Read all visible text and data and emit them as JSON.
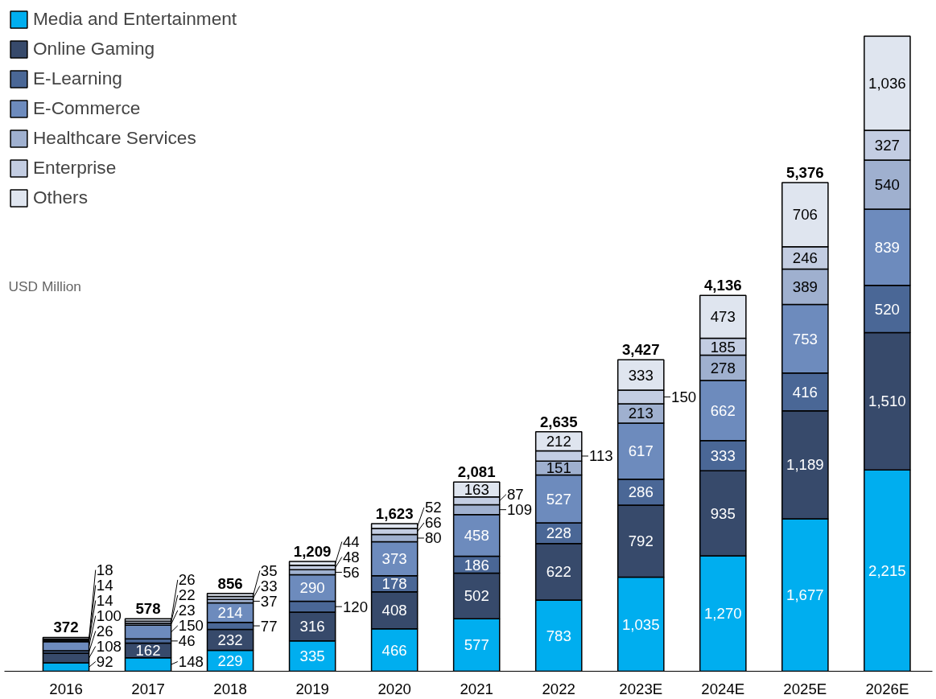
{
  "chart_data": {
    "type": "bar",
    "stacked": true,
    "ylabel": "USD Million",
    "categories": [
      "2016",
      "2017",
      "2018",
      "2019",
      "2020",
      "2021",
      "2022",
      "2023E",
      "2024E",
      "2025E",
      "2026E"
    ],
    "series": [
      {
        "name": "Media and Entertainment",
        "color": "#00aeef",
        "values": [
          92,
          148,
          229,
          335,
          466,
          577,
          783,
          1035,
          1270,
          1677,
          2215
        ],
        "value_labels": [
          "92",
          "148",
          "229",
          "335",
          "466",
          "577",
          "783",
          "1,035",
          "1,270",
          "1,677",
          "2,215"
        ]
      },
      {
        "name": "Online Gaming",
        "color": "#374a6b",
        "values": [
          108,
          162,
          232,
          316,
          408,
          502,
          622,
          792,
          935,
          1189,
          1510
        ],
        "value_labels": [
          "108",
          "162",
          "232",
          "316",
          "408",
          "502",
          "622",
          "792",
          "935",
          "1,189",
          "1,510"
        ]
      },
      {
        "name": "E-Learning",
        "color": "#4a6796",
        "values": [
          26,
          46,
          77,
          120,
          178,
          186,
          228,
          286,
          333,
          416,
          520
        ],
        "value_labels": [
          "26",
          "46",
          "77",
          "120",
          "178",
          "186",
          "228",
          "286",
          "333",
          "416",
          "520"
        ]
      },
      {
        "name": "E-Commerce",
        "color": "#6d8bbd",
        "values": [
          100,
          150,
          214,
          290,
          373,
          458,
          527,
          617,
          662,
          753,
          839
        ],
        "value_labels": [
          "100",
          "150",
          "214",
          "290",
          "373",
          "458",
          "527",
          "617",
          "662",
          "753",
          "839"
        ]
      },
      {
        "name": "Healthcare Services",
        "color": "#9fb0cf",
        "values": [
          14,
          23,
          37,
          56,
          80,
          109,
          151,
          213,
          278,
          389,
          540
        ],
        "value_labels": [
          "14",
          "23",
          "37",
          "56",
          "80",
          "109",
          "151",
          "213",
          "278",
          "389",
          "540"
        ]
      },
      {
        "name": "Enterprise",
        "color": "#c3cde2",
        "values": [
          14,
          22,
          33,
          48,
          66,
          87,
          113,
          150,
          185,
          246,
          327
        ],
        "value_labels": [
          "14",
          "22",
          "33",
          "48",
          "66",
          "87",
          "113",
          "150",
          "185",
          "246",
          "327"
        ]
      },
      {
        "name": "Others",
        "color": "#dfe5ef",
        "values": [
          18,
          26,
          35,
          44,
          52,
          163,
          212,
          333,
          473,
          706,
          1036
        ],
        "value_labels": [
          "18",
          "26",
          "35",
          "44",
          "52",
          "163",
          "212",
          "333",
          "473",
          "706",
          "1,036"
        ]
      }
    ],
    "totals": [
      "372",
      "578",
      "856",
      "1,209",
      "1,623",
      "2,081",
      "2,635",
      "3,427",
      "4,136",
      "5,376",
      null
    ],
    "legend": "top left",
    "grid": false
  }
}
